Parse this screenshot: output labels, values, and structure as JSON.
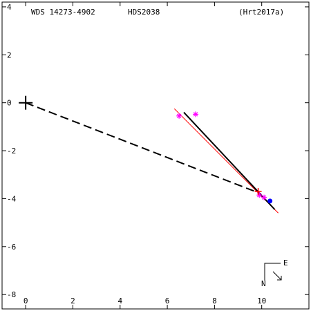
{
  "header": {
    "wds": "WDS 14273-4902",
    "discoverer": "HDS2038",
    "reference": "(Hrt2017a)"
  },
  "compass": {
    "north": "N",
    "east": "E"
  },
  "chart_data": {
    "type": "scatter",
    "title": "",
    "xlabel": "",
    "ylabel": "",
    "xlim": [
      -1,
      12
    ],
    "ylim": [
      -8.6,
      4.2
    ],
    "x_ticks": [
      0,
      2,
      4,
      6,
      8,
      10
    ],
    "y_ticks": [
      4,
      2,
      0,
      -2,
      -4,
      -6,
      -8
    ],
    "x_tick_labels": [
      "0",
      "2",
      "4",
      "6",
      "8",
      "10"
    ],
    "y_tick_labels": [
      "4",
      "2",
      "0",
      "-2",
      "-4",
      "-6",
      "-8"
    ],
    "primary": {
      "x": 0,
      "y": 0
    },
    "separation_line": {
      "from": [
        0,
        0
      ],
      "to": [
        9.85,
        -3.75
      ]
    },
    "orbit_line": {
      "from": [
        6.7,
        -0.4
      ],
      "to": [
        10.55,
        -4.45
      ]
    },
    "fit_line": {
      "from": [
        6.3,
        -0.25
      ],
      "to": [
        10.7,
        -4.6
      ]
    },
    "observations_magenta": [
      {
        "x": 6.5,
        "y": -0.55
      },
      {
        "x": 7.2,
        "y": -0.48
      },
      {
        "x": 9.9,
        "y": -3.85
      },
      {
        "x": 10.1,
        "y": -3.95
      }
    ],
    "observation_red": {
      "x": 9.85,
      "y": -3.7
    },
    "predicted_blue": {
      "x": 10.35,
      "y": -4.1
    },
    "colors": {
      "axes": "#000000",
      "separation_line": "#000000",
      "orbit_line": "#000000",
      "fit_line": "#ff0000",
      "observations_magenta": "#ff00ff",
      "observation_red": "#ff0000",
      "predicted_blue": "#0000ff"
    }
  }
}
